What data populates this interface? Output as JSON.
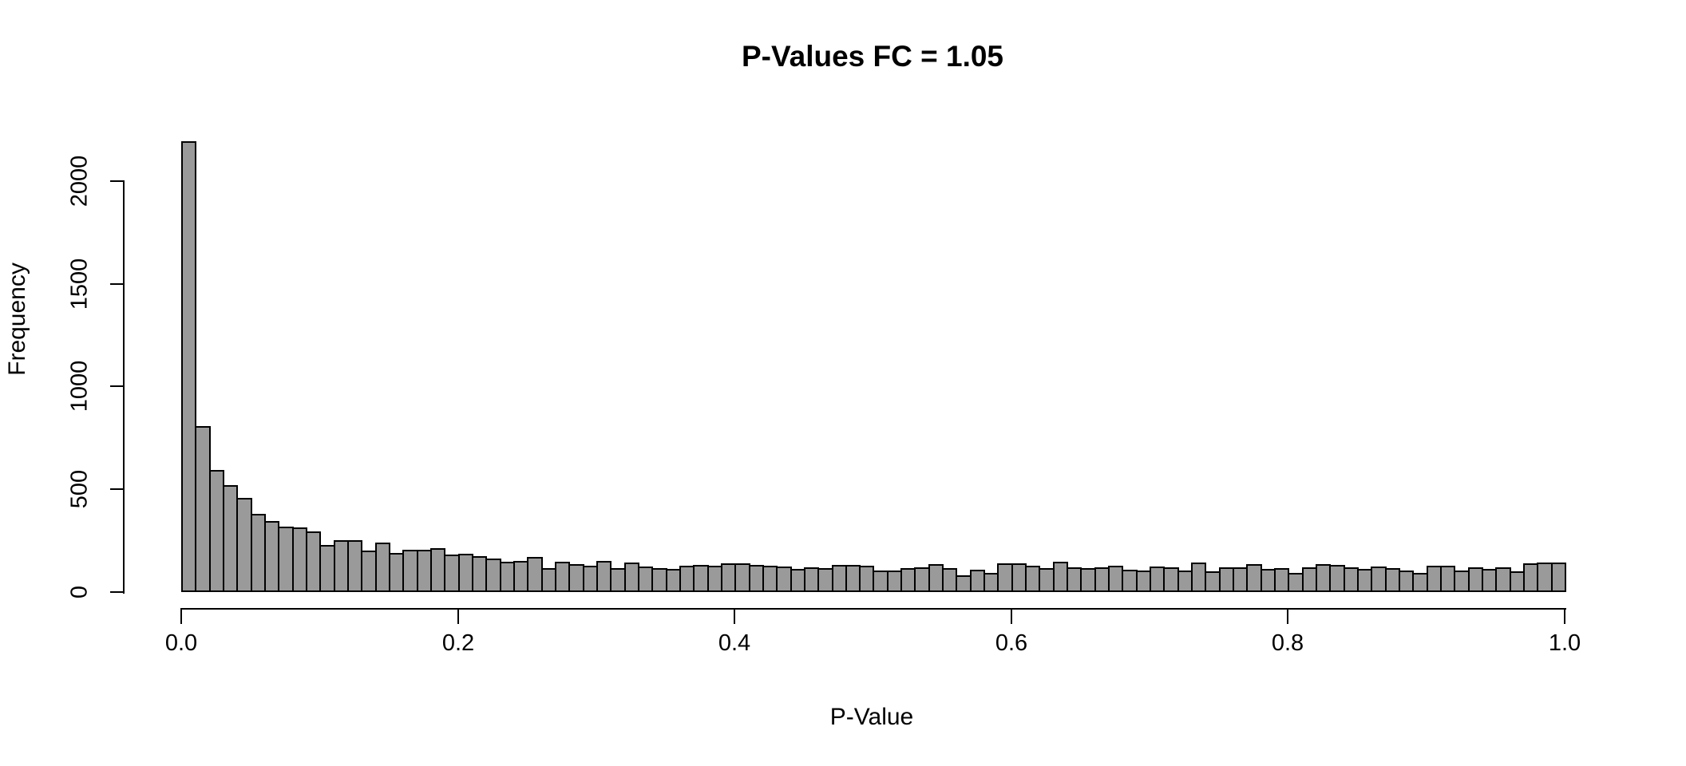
{
  "title": "P-Values FC = 1.05",
  "chart_data": {
    "type": "bar",
    "subtype": "histogram",
    "title": "P-Values FC = 1.05",
    "xlabel": "P-Value",
    "ylabel": "Frequency",
    "bin_start": 0.0,
    "bin_width": 0.01,
    "x_ticks": [
      0.0,
      0.2,
      0.4,
      0.6,
      0.8,
      1.0
    ],
    "x_tick_labels": [
      "0.0",
      "0.2",
      "0.4",
      "0.6",
      "0.8",
      "1.0"
    ],
    "y_ticks": [
      0,
      500,
      1000,
      1500,
      2000
    ],
    "y_tick_labels": [
      "0",
      "500",
      "1000",
      "1500",
      "2000"
    ],
    "xlim": [
      0.0,
      1.0
    ],
    "ylim": [
      0,
      2200
    ],
    "grid": false,
    "legend": false,
    "bar_fill_color": "#9a9a9a",
    "bar_border_color": "#000000",
    "background_color": "#ffffff",
    "values": [
      2185,
      800,
      586,
      512,
      451,
      373,
      338,
      312,
      308,
      286,
      221,
      243,
      243,
      195,
      234,
      182,
      198,
      198,
      204,
      176,
      177,
      168,
      156,
      140,
      145,
      163,
      110,
      140,
      130,
      120,
      145,
      110,
      135,
      115,
      108,
      105,
      121,
      124,
      121,
      131,
      133,
      124,
      121,
      118,
      105,
      114,
      107,
      124,
      124,
      121,
      98,
      98,
      107,
      111,
      127,
      107,
      75,
      102,
      85,
      131,
      132,
      121,
      109,
      140,
      114,
      109,
      114,
      121,
      101,
      98,
      118,
      111,
      98,
      135,
      92,
      114,
      114,
      127,
      105,
      107,
      85,
      111,
      127,
      124,
      114,
      105,
      118,
      107,
      98,
      85,
      121,
      121,
      98,
      114,
      105,
      114,
      92,
      131,
      135,
      135
    ]
  }
}
